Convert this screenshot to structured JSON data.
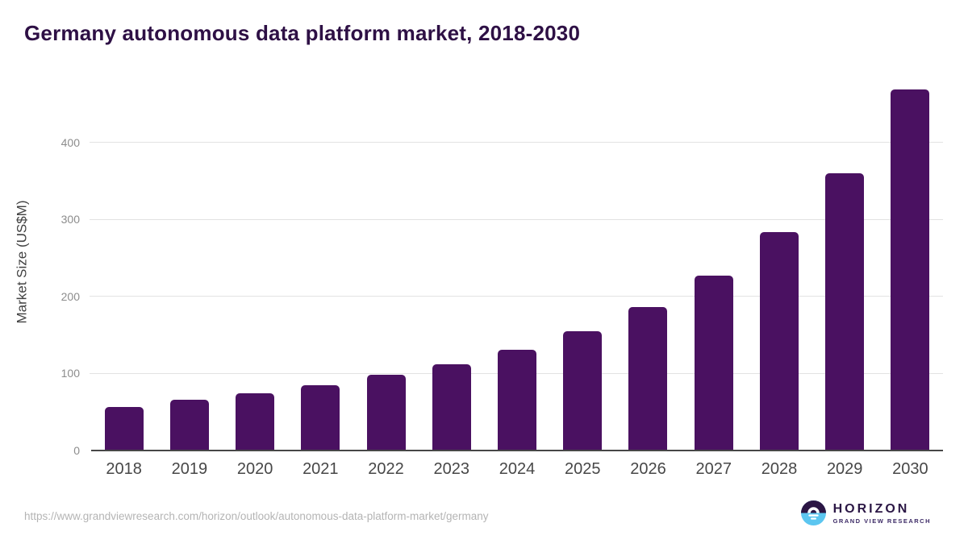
{
  "chart": {
    "title": "Germany autonomous data platform market, 2018-2030",
    "ylabel": "Market Size (US$M)"
  },
  "chart_data": {
    "type": "bar",
    "title": "Germany autonomous data platform market, 2018-2030",
    "categories": [
      "2018",
      "2019",
      "2020",
      "2021",
      "2022",
      "2023",
      "2024",
      "2025",
      "2026",
      "2027",
      "2028",
      "2029",
      "2030"
    ],
    "values": [
      57,
      66,
      74,
      85,
      98,
      112,
      131,
      155,
      186,
      227,
      283,
      360,
      469
    ],
    "xlabel": "",
    "ylabel": "Market Size (US$M)",
    "ylim": [
      0,
      480
    ],
    "yticks": [
      0,
      100,
      200,
      300,
      400
    ],
    "grid": "horizontal",
    "legend_position": "none",
    "bar_color": "#4a1161"
  },
  "colors": {
    "bar": "#4a1161",
    "title": "#2e1045",
    "axis_line": "#474747",
    "gridline": "#e2e2e2",
    "ytick_label": "#8c8c8c",
    "xtick_label": "#474747",
    "url_text": "#b4b4b4",
    "logo_purple": "#2b1544",
    "logo_blue": "#5cc6f0"
  },
  "footer": {
    "source_url": "https://www.grandviewresearch.com/horizon/outlook/autonomous-data-platform-market/germany",
    "logo": {
      "brand": "HORIZON",
      "subtitle": "GRAND VIEW RESEARCH"
    }
  }
}
